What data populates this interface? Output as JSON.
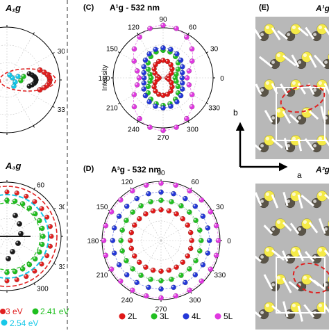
{
  "figure": {
    "panels": {
      "a_label": "A₁g",
      "b_label": "A₃g",
      "c_label": "(C)",
      "c_title": "A¹g - 532 nm",
      "d_label": "(D)",
      "d_title": "A³g - 532 nm",
      "e_label": "(E)",
      "e_top_label": "A¹g",
      "e_bottom_label": "A³g",
      "axis_a": "a",
      "axis_b": "b"
    },
    "left_legend": [
      {
        "text": "3 eV",
        "color": "#e02020"
      },
      {
        "text": "2.41 eV",
        "color": "#1fbf1f"
      },
      {
        "text": "2.54 eV",
        "color": "#18c8e8"
      }
    ],
    "cd_legend": [
      {
        "text": "2L",
        "color": "#e01818"
      },
      {
        "text": "3L",
        "color": "#22c022"
      },
      {
        "text": "4L",
        "color": "#2438d8"
      },
      {
        "text": "5L",
        "color": "#e038e0"
      }
    ],
    "colors": {
      "ring_red": "#e01818",
      "ring_green": "#22c022",
      "ring_blue": "#2438d8",
      "ring_magenta": "#e038e0",
      "atom_yellow": "#f5ea48",
      "atom_dark": "#5a5448",
      "panel_gray": "#b8b8b8",
      "dashed_red": "#e02020"
    },
    "chart_data": [
      {
        "type": "scatter",
        "panel": "C",
        "title": "A¹g - 532 nm",
        "coordinate": "polar",
        "ylabel": "Intensity",
        "angle_ticks": [
          "0",
          "30",
          "60",
          "90",
          "120",
          "150",
          "180",
          "210",
          "240",
          "270",
          "300",
          "330"
        ],
        "radial_range": [
          0,
          1
        ],
        "series": [
          {
            "name": "2L",
            "color": "#e01818",
            "radius_0": 0.08,
            "radius_90": 0.35
          },
          {
            "name": "3L",
            "color": "#22c022",
            "radius_0": 0.24,
            "radius_90": 0.55
          },
          {
            "name": "4L",
            "color": "#2438d8",
            "radius_0": 0.38,
            "radius_90": 0.6
          },
          {
            "name": "5L",
            "color": "#e038e0",
            "radius_0": 0.48,
            "radius_90": 1.05
          }
        ]
      },
      {
        "type": "scatter",
        "panel": "D",
        "title": "A³g - 532 nm",
        "coordinate": "polar",
        "angle_ticks": [
          "0",
          "30",
          "60",
          "90",
          "120",
          "150",
          "180",
          "210",
          "240",
          "270",
          "300",
          "330"
        ],
        "radial_range": [
          0,
          1
        ],
        "series": [
          {
            "name": "2L",
            "color": "#e01818",
            "radius": 0.52
          },
          {
            "name": "3L",
            "color": "#22c022",
            "radius": 0.68
          },
          {
            "name": "4L",
            "color": "#2438d8",
            "radius": 0.82
          },
          {
            "name": "5L",
            "color": "#e038e0",
            "radius": 0.97
          }
        ]
      }
    ]
  }
}
